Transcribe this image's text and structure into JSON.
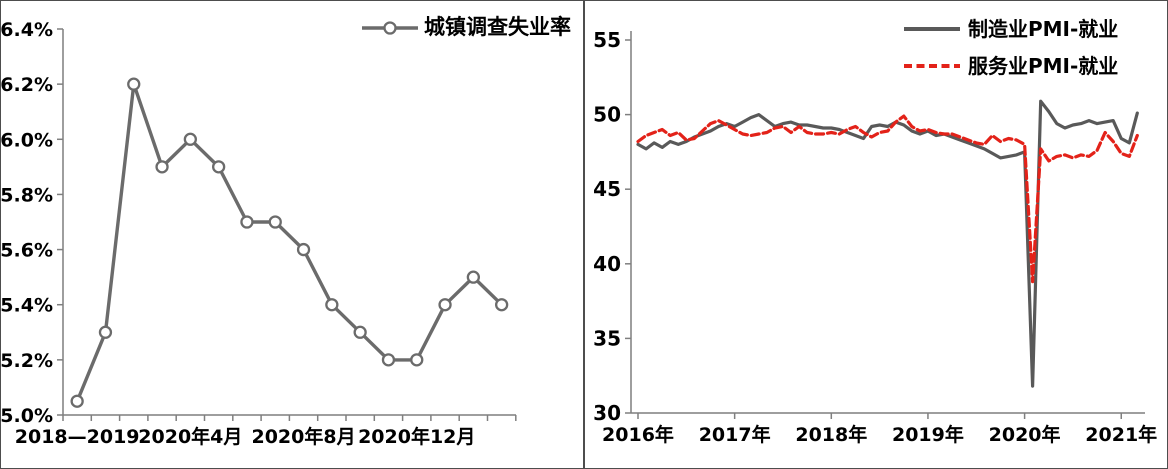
{
  "chart_data": [
    {
      "type": "line",
      "panel": "left",
      "series": [
        {
          "name": "城镇调查失业率",
          "color": "#6b6b6b",
          "style": "solid",
          "marker": "circle-white",
          "values": [
            5.05,
            5.3,
            6.2,
            5.9,
            6.0,
            5.9,
            5.7,
            5.7,
            5.6,
            5.4,
            5.3,
            5.2,
            5.2,
            5.4,
            5.5,
            5.4
          ]
        }
      ],
      "x_tick_labels": [
        "2018—2019",
        "2020年4月",
        "2020年8月",
        "2020年12月"
      ],
      "x_tick_positions": [
        0,
        4,
        8,
        12
      ],
      "y_tick_labels": [
        "5.0%",
        "5.2%",
        "5.4%",
        "5.6%",
        "5.8%",
        "6.0%",
        "6.2%",
        "6.4%"
      ],
      "ylim": [
        5.0,
        6.4
      ],
      "legend_position": "top-right",
      "grid": "off"
    },
    {
      "type": "line",
      "panel": "right",
      "series": [
        {
          "name": "制造业PMI-就业",
          "color": "#595959",
          "style": "solid",
          "values": [
            48.0,
            47.7,
            48.1,
            47.8,
            48.2,
            48.0,
            48.2,
            48.5,
            48.7,
            48.9,
            49.2,
            49.4,
            49.2,
            49.5,
            49.8,
            50.0,
            49.6,
            49.2,
            49.4,
            49.5,
            49.3,
            49.3,
            49.2,
            49.1,
            49.1,
            49.0,
            48.8,
            48.6,
            48.4,
            49.2,
            49.3,
            49.2,
            49.5,
            49.3,
            48.9,
            48.7,
            48.9,
            48.6,
            48.7,
            48.5,
            48.3,
            48.1,
            47.9,
            47.7,
            47.4,
            47.1,
            47.2,
            47.3,
            47.5,
            31.8,
            50.9,
            50.2,
            49.4,
            49.1,
            49.3,
            49.4,
            49.6,
            49.4,
            49.5,
            49.6,
            48.4,
            48.1,
            50.1
          ]
        },
        {
          "name": "服务业PMI-就业",
          "color": "#e32219",
          "style": "dashed",
          "values": [
            48.2,
            48.6,
            48.8,
            49.0,
            48.6,
            48.8,
            48.3,
            48.4,
            48.9,
            49.4,
            49.6,
            49.3,
            49.0,
            48.7,
            48.6,
            48.7,
            48.8,
            49.1,
            49.2,
            48.8,
            49.2,
            48.8,
            48.7,
            48.7,
            48.8,
            48.7,
            49.0,
            49.2,
            48.8,
            48.5,
            48.8,
            48.9,
            49.5,
            49.9,
            49.2,
            48.9,
            49.0,
            48.8,
            48.7,
            48.7,
            48.5,
            48.3,
            48.1,
            48.0,
            48.6,
            48.2,
            48.4,
            48.3,
            48.0,
            38.8,
            47.7,
            46.9,
            47.2,
            47.3,
            47.1,
            47.3,
            47.2,
            47.6,
            48.8,
            48.2,
            47.4,
            47.2,
            48.6
          ]
        }
      ],
      "x_tick_labels": [
        "2016年",
        "2017年",
        "2018年",
        "2019年",
        "2020年",
        "2021年"
      ],
      "x_tick_positions": [
        0,
        12,
        24,
        36,
        48,
        60
      ],
      "y_tick_labels": [
        "30",
        "35",
        "40",
        "45",
        "50",
        "55"
      ],
      "ylim": [
        30,
        55
      ],
      "legend_position": "top-right",
      "grid": "off"
    }
  ]
}
